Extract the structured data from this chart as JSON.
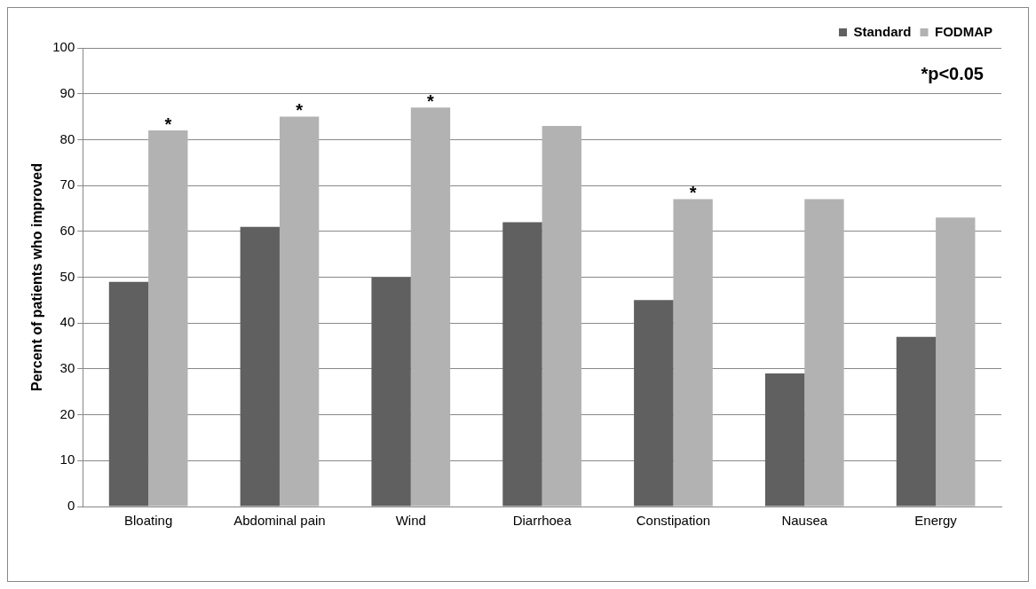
{
  "chart_data": {
    "type": "bar",
    "ylabel": "Percent of patients who improved",
    "categories": [
      "Bloating",
      "Abdominal pain",
      "Wind",
      "Diarrhoea",
      "Constipation",
      "Nausea",
      "Energy"
    ],
    "series": [
      {
        "name": "Standard",
        "color": "#606060",
        "values": [
          49,
          61,
          50,
          62,
          45,
          29,
          37
        ]
      },
      {
        "name": "FODMAP",
        "color": "#b2b2b2",
        "values": [
          82,
          85,
          87,
          83,
          67,
          67,
          63
        ]
      }
    ],
    "ylim": [
      0,
      100
    ],
    "yticks": [
      0,
      10,
      20,
      30,
      40,
      50,
      60,
      70,
      80,
      90,
      100
    ],
    "grid": "y",
    "legend": "top right",
    "annotations": [
      {
        "text": "*",
        "x": "Bloating",
        "y": 82
      },
      {
        "text": "*",
        "x": "Abdominal pain",
        "y": 85
      },
      {
        "text": "*",
        "x": "Wind",
        "y": 87
      },
      {
        "text": "*",
        "x": "Constipation",
        "y": 67
      },
      "*p<0.05"
    ]
  }
}
